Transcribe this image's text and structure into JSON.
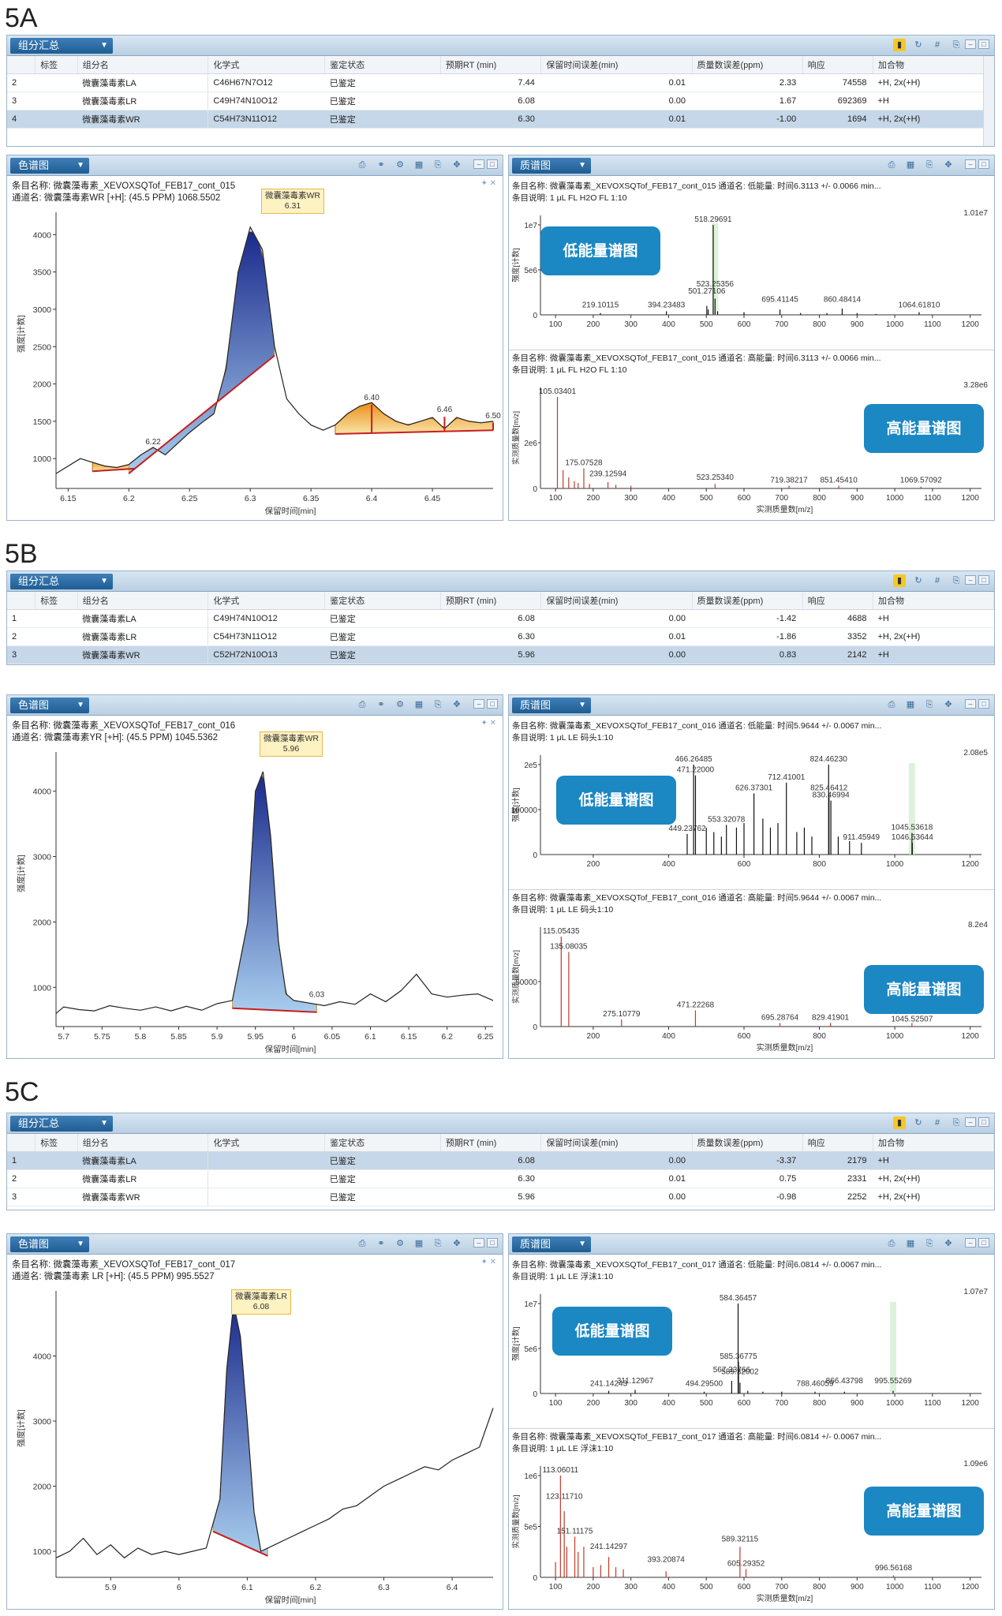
{
  "figures": [
    {
      "label": "5A",
      "summary": {
        "title": "组分汇总",
        "headers": [
          "",
          "标签",
          "组分名",
          "化学式",
          "鉴定状态",
          "预期RT (min)",
          "保留时间误差(min)",
          "质量数误差(ppm)",
          "响应",
          "加合物"
        ],
        "rows": [
          {
            "idx": "2",
            "tag": "",
            "name": "微囊藻毒素LA",
            "formula": "C46H67N7O12",
            "status": "已鉴定",
            "rt": "7.44",
            "rterr": "0.01",
            "ppm": "2.33",
            "resp": "74558",
            "adduct": "+H, 2x(+H)",
            "selected": false
          },
          {
            "idx": "3",
            "tag": "",
            "name": "微囊藻毒素LR",
            "formula": "C49H74N10O12",
            "status": "已鉴定",
            "rt": "6.08",
            "rterr": "0.00",
            "ppm": "1.67",
            "resp": "692369",
            "adduct": "+H",
            "selected": false
          },
          {
            "idx": "4",
            "tag": "",
            "name": "微囊藻毒素WR",
            "formula": "C54H73N11O12",
            "status": "已鉴定",
            "rt": "6.30",
            "rterr": "0.01",
            "ppm": "-1.00",
            "resp": "1694",
            "adduct": "+H, 2x(+H)",
            "selected": true
          }
        ]
      },
      "chrom": {
        "title": "色谱图",
        "line1": "条目名称:  微囊藻毒素_XEVOXSQTof_FEB17_cont_015",
        "line2": "通道名:  微囊藻毒素WR [+H]: (45.5 PPM) 1068.5502",
        "callout_name": "微囊藻毒素WR",
        "callout_rt": "6.31",
        "ylabel": "强度[计数]",
        "xlabel": "保留时间[min]",
        "peak_labels": [
          "6.22",
          "6.40",
          "6.46",
          "6.50"
        ]
      },
      "ms_low": {
        "title": "质谱图",
        "line1": "条目名称:  微囊藻毒素_XEVOXSQTof_FEB17_cont_015 通道名:  低能量:  时间6.3113 +/- 0.0066 min...",
        "line2": "条目说明:  1 μL FL H2O FL 1:10",
        "max": "1.01e7",
        "badge": "低能量谱图",
        "ylabel": "强度[计数]",
        "peaks": [
          "518.29691",
          "501.27106",
          "523.25356",
          "219.10115",
          "394.23483",
          "695.41145",
          "860.48414",
          "1064.61810"
        ]
      },
      "ms_high": {
        "line1": "条目名称:  微囊藻毒素_XEVOXSQTof_FEB17_cont_015 通道名:  高能量:  时间6.3113 +/- 0.0066 min...",
        "line2": "条目说明:  1 μL FL H2O FL 1:10",
        "max": "3.28e6",
        "badge": "高能量谱图",
        "ylabel": "实测质量数[m/z]",
        "xlabel": "实测质量数[m/z]",
        "peaks": [
          "105.03401",
          "175.07528",
          "239.12594",
          "523.25340",
          "719.38217",
          "851.45410",
          "1069.57092"
        ]
      }
    },
    {
      "label": "5B",
      "summary": {
        "title": "组分汇总",
        "headers": [
          "",
          "标签",
          "组分名",
          "化学式",
          "鉴定状态",
          "预期RT (min)",
          "保留时间误差(min)",
          "质量数误差(ppm)",
          "响应",
          "加合物"
        ],
        "rows": [
          {
            "idx": "1",
            "tag": "",
            "name": "微囊藻毒素LA",
            "formula": "C49H74N10O12",
            "status": "已鉴定",
            "rt": "6.08",
            "rterr": "0.00",
            "ppm": "-1.42",
            "resp": "4688",
            "adduct": "+H",
            "selected": false
          },
          {
            "idx": "2",
            "tag": "",
            "name": "微囊藻毒素LR",
            "formula": "C54H73N11O12",
            "status": "已鉴定",
            "rt": "6.30",
            "rterr": "0.01",
            "ppm": "-1.86",
            "resp": "3352",
            "adduct": "+H, 2x(+H)",
            "selected": false
          },
          {
            "idx": "3",
            "tag": "",
            "name": "微囊藻毒素WR",
            "formula": "C52H72N10O13",
            "status": "已鉴定",
            "rt": "5.96",
            "rterr": "0.00",
            "ppm": "0.83",
            "resp": "2142",
            "adduct": "+H",
            "selected": true
          }
        ]
      },
      "chrom": {
        "title": "色谱图",
        "line1": "条目名称:  微囊藻毒素_XEVOXSQTof_FEB17_cont_016",
        "line2": "通道名:  微囊藻毒素YR [+H]: (45.5 PPM) 1045.5362",
        "callout_name": "微囊藻毒素WR",
        "callout_rt": "5.96",
        "ylabel": "强度[计数]",
        "xlabel": "保留时间[min]",
        "peak_labels": [
          "6.03"
        ]
      },
      "ms_low": {
        "title": "质谱图",
        "line1": "条目名称:  微囊藻毒素_XEVOXSQTof_FEB17_cont_016 通道名:  低能量:  时间5.9644 +/- 0.0067 min...",
        "line2": "条目说明:  1 μL LE 码头1:10",
        "max": "2.08e5",
        "badge": "低能量谱图",
        "ylabel": "强度[计数]",
        "peaks": [
          "466.26485",
          "824.46230",
          "471.22000",
          "712.41001",
          "626.37301",
          "553.32078",
          "449.23762",
          "825.46412",
          "830.46994",
          "911.45949",
          "1045.53618",
          "1046.53644"
        ]
      },
      "ms_high": {
        "line1": "条目名称:  微囊藻毒素_XEVOXSQTof_FEB17_cont_016 通道名:  高能量:  时间5.9644 +/- 0.0067 min...",
        "line2": "条目说明:  1 μL LE 码头1:10",
        "max": "8.2e4",
        "badge": "高能量谱图",
        "ylabel": "实测质量数[m/z]",
        "xlabel": "实测质量数[m/z]",
        "peaks": [
          "115.05435",
          "135.08035",
          "275.10779",
          "471.22268",
          "695.28764",
          "829.41901",
          "1045.52507"
        ]
      }
    },
    {
      "label": "5C",
      "summary": {
        "title": "组分汇总",
        "headers": [
          "",
          "标签",
          "组分名",
          "化学式",
          "鉴定状态",
          "预期RT (min)",
          "保留时间误差(min)",
          "质量数误差(ppm)",
          "响应",
          "加合物"
        ],
        "rows": [
          {
            "idx": "1",
            "tag": "",
            "name": "微囊藻毒素LA",
            "formula": "",
            "status": "已鉴定",
            "rt": "6.08",
            "rterr": "0.00",
            "ppm": "-3.37",
            "resp": "2179",
            "adduct": "+H",
            "selected": true
          },
          {
            "idx": "2",
            "tag": "",
            "name": "微囊藻毒素LR",
            "formula": "",
            "status": "已鉴定",
            "rt": "6.30",
            "rterr": "0.01",
            "ppm": "0.75",
            "resp": "2331",
            "adduct": "+H, 2x(+H)",
            "selected": false
          },
          {
            "idx": "3",
            "tag": "",
            "name": "微囊藻毒素WR",
            "formula": "",
            "status": "已鉴定",
            "rt": "5.96",
            "rterr": "0.00",
            "ppm": "-0.98",
            "resp": "2252",
            "adduct": "+H, 2x(+H)",
            "selected": false
          }
        ]
      },
      "chrom": {
        "title": "色谱图",
        "line1": "条目名称:  微囊藻毒素_XEVOXSQTof_FEB17_cont_017",
        "line2": "通道名:  微囊藻毒素 LR [+H]: (45.5 PPM) 995.5527",
        "callout_name": "微囊藻毒素LR",
        "callout_rt": "6.08",
        "ylabel": "强度[计数]",
        "xlabel": "保留时间[min]",
        "peak_labels": []
      },
      "ms_low": {
        "title": "质谱图",
        "line1": "条目名称:  微囊藻毒素_XEVOXSQTof_FEB17_cont_017 通道名:  低能量:  时间6.0814 +/- 0.0067 min...",
        "line2": "条目说明:  1 μL LE 浮沫1:10",
        "max": "1.07e7",
        "badge": "低能量谱图",
        "ylabel": "强度[计数]",
        "peaks": [
          "584.36457",
          "585.36775",
          "567.33766",
          "589.32002",
          "311.12967",
          "241.14243",
          "494.29500",
          "788.46059",
          "866.43798",
          "995.55269"
        ]
      },
      "ms_high": {
        "line1": "条目名称:  微囊藻毒素_XEVOXSQTof_FEB17_cont_017 通道名:  高能量:  时间6.0814 +/- 0.0067 min...",
        "line2": "条目说明:  1 μL LE 浮沫1:10",
        "max": "1.09e6",
        "badge": "高能量谱图",
        "ylabel": "实测质量数[m/z]",
        "xlabel": "实测质量数[m/z]",
        "peaks": [
          "113.06011",
          "123.11710",
          "151.11175",
          "241.14297",
          "393.20874",
          "589.32115",
          "605.29352",
          "996.56168"
        ]
      }
    }
  ],
  "chart_data": [
    {
      "type": "area",
      "panel": "5A chrom",
      "x_ticks": [
        "6.15",
        "6.2",
        "6.25",
        "6.3",
        "6.35",
        "6.4",
        "6.45"
      ],
      "y_ticks": [
        "1000",
        "1500",
        "2000",
        "2500",
        "3000",
        "3500",
        "4000"
      ],
      "xlim": [
        6.14,
        6.5
      ],
      "ylim": [
        600,
        4300
      ],
      "x": [
        6.14,
        6.16,
        6.18,
        6.19,
        6.2,
        6.21,
        6.22,
        6.23,
        6.24,
        6.25,
        6.26,
        6.27,
        6.28,
        6.29,
        6.3,
        6.31,
        6.32,
        6.33,
        6.34,
        6.35,
        6.36,
        6.37,
        6.38,
        6.39,
        6.4,
        6.41,
        6.42,
        6.43,
        6.44,
        6.45,
        6.46,
        6.47,
        6.48,
        6.49,
        6.5
      ],
      "y": [
        800,
        1000,
        900,
        880,
        920,
        1050,
        1150,
        1050,
        1200,
        1350,
        1480,
        1600,
        2200,
        3500,
        4100,
        3800,
        2500,
        1800,
        1600,
        1450,
        1380,
        1450,
        1600,
        1700,
        1750,
        1600,
        1500,
        1450,
        1500,
        1550,
        1400,
        1550,
        1500,
        1480,
        1500
      ]
    },
    {
      "type": "area",
      "panel": "5B chrom",
      "x_ticks": [
        "5.7",
        "5.75",
        "5.8",
        "5.85",
        "5.9",
        "5.95",
        "6",
        "6.05",
        "6.1",
        "6.15",
        "6.2",
        "6.25"
      ],
      "y_ticks": [
        "1000",
        "2000",
        "3000",
        "4000"
      ],
      "xlim": [
        5.69,
        6.26
      ],
      "ylim": [
        400,
        4600
      ],
      "x": [
        5.69,
        5.7,
        5.72,
        5.74,
        5.76,
        5.78,
        5.8,
        5.82,
        5.84,
        5.86,
        5.88,
        5.9,
        5.92,
        5.94,
        5.95,
        5.96,
        5.97,
        5.98,
        5.99,
        6.0,
        6.02,
        6.04,
        6.06,
        6.08,
        6.1,
        6.12,
        6.14,
        6.16,
        6.18,
        6.2,
        6.22,
        6.24,
        6.26
      ],
      "y": [
        600,
        700,
        660,
        640,
        720,
        680,
        650,
        700,
        640,
        710,
        650,
        750,
        800,
        2000,
        4000,
        4300,
        3300,
        1700,
        900,
        800,
        760,
        720,
        780,
        740,
        900,
        780,
        950,
        1200,
        900,
        850,
        880,
        900,
        800
      ]
    },
    {
      "type": "area",
      "panel": "5C chrom",
      "x_ticks": [
        "5.9",
        "6",
        "6.1",
        "6.2",
        "6.3",
        "6.4"
      ],
      "y_ticks": [
        "1000",
        "2000",
        "3000",
        "4000"
      ],
      "xlim": [
        5.82,
        6.46
      ],
      "ylim": [
        600,
        5000
      ],
      "x": [
        5.82,
        5.84,
        5.86,
        5.88,
        5.9,
        5.92,
        5.94,
        5.96,
        5.98,
        6.0,
        6.02,
        6.04,
        6.06,
        6.07,
        6.08,
        6.09,
        6.1,
        6.11,
        6.12,
        6.14,
        6.16,
        6.18,
        6.2,
        6.22,
        6.24,
        6.26,
        6.28,
        6.3,
        6.32,
        6.34,
        6.36,
        6.38,
        6.4,
        6.42,
        6.44,
        6.46
      ],
      "y": [
        900,
        1000,
        1200,
        950,
        1100,
        900,
        1050,
        950,
        1000,
        950,
        1000,
        1050,
        1800,
        3800,
        4800,
        4300,
        3000,
        1600,
        1000,
        1100,
        1200,
        1300,
        1400,
        1500,
        1650,
        1700,
        1850,
        2000,
        2100,
        2200,
        2300,
        2250,
        2400,
        2500,
        2600,
        3200
      ]
    }
  ]
}
